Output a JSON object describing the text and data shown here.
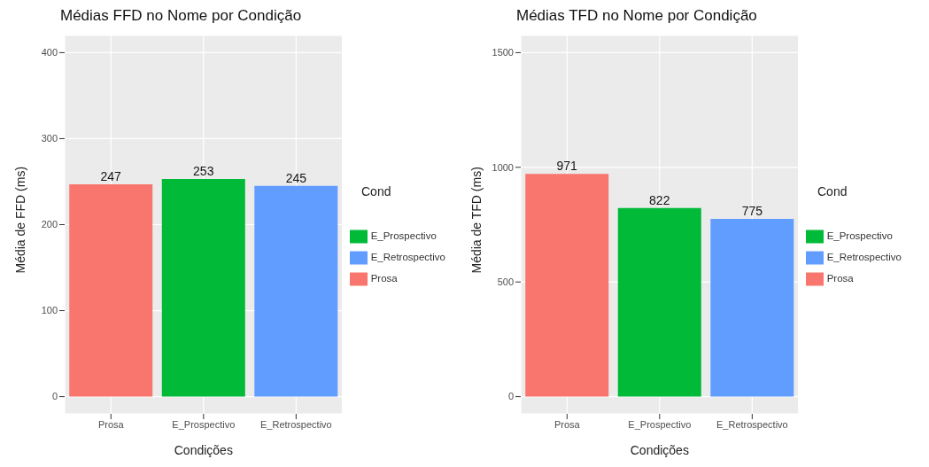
{
  "chart_data": [
    {
      "type": "bar",
      "title": "Médias FFD no Nome por Condição",
      "xlabel": "Condições",
      "ylabel": "Média de FFD (ms)",
      "legend_title": "Cond",
      "categories": [
        "Prosa",
        "E_Prospectivo",
        "E_Retrospectivo"
      ],
      "stacked": true,
      "series": [
        {
          "name": "Prosa",
          "color": "#f8766d",
          "values": [
            247,
            null,
            null
          ]
        },
        {
          "name": "E_Prospectivo",
          "color": "#00ba38",
          "values": [
            null,
            253,
            null
          ]
        },
        {
          "name": "E_Retrospectivo",
          "color": "#619cff",
          "values": [
            null,
            null,
            245
          ]
        }
      ],
      "ylim": [
        -20,
        420
      ],
      "yticks": [
        0,
        100,
        200,
        300,
        400
      ],
      "grid": true,
      "legend": "right",
      "data_labels": true
    },
    {
      "type": "bar",
      "title": "Médias TFD no Nome por Condição",
      "xlabel": "Condições",
      "ylabel": "Média de TFD (ms)",
      "legend_title": "Cond",
      "categories": [
        "Prosa",
        "E_Prospectivo",
        "E_Retrospectivo"
      ],
      "stacked": true,
      "series": [
        {
          "name": "Prosa",
          "color": "#f8766d",
          "values": [
            971,
            null,
            null
          ]
        },
        {
          "name": "E_Prospectivo",
          "color": "#00ba38",
          "values": [
            null,
            822,
            null
          ]
        },
        {
          "name": "E_Retrospectivo",
          "color": "#619cff",
          "values": [
            null,
            null,
            775
          ]
        }
      ],
      "ylim": [
        -75,
        1575
      ],
      "yticks": [
        0,
        500,
        1000,
        1500
      ],
      "grid": true,
      "legend": "right",
      "data_labels": true
    }
  ]
}
